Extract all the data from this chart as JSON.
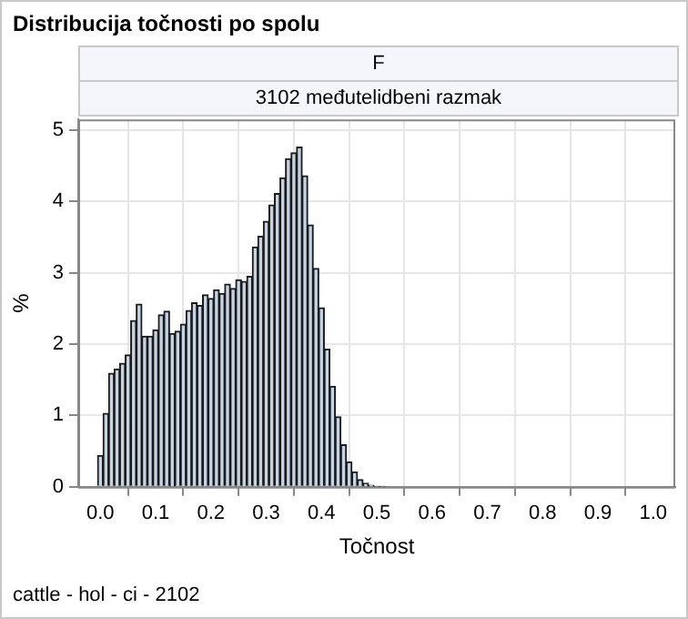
{
  "chart_data": {
    "type": "histogram",
    "title": "Distribucija točnosti po spolu",
    "subtitle": "F",
    "annotations": [
      "3102 međutelidbeni razmak",
      "cattle - hol - ci - 2102"
    ],
    "xlabel": "Točnost",
    "ylabel": "%",
    "color": "#c6d3e3",
    "grid": true,
    "xlim": [
      -0.04,
      1.04
    ],
    "xticks": [
      {
        "value": 0,
        "label": "0.0"
      },
      0.1,
      0.2,
      0.3,
      0.4,
      0.5,
      0.6,
      0.7,
      0.8,
      0.9,
      {
        "value": 1,
        "label": "1.0"
      }
    ],
    "ylim": [
      0,
      5.15
    ],
    "yticks": [
      0,
      1,
      2,
      3,
      4,
      5
    ],
    "bins": [
      -0.005,
      0.005,
      0.015,
      0.025,
      0.035,
      0.045,
      0.055,
      0.065,
      0.075,
      0.085,
      0.095,
      0.105,
      0.115,
      0.125,
      0.135,
      0.145,
      0.155,
      0.165,
      0.175,
      0.185,
      0.195,
      0.205,
      0.215,
      0.225,
      0.235,
      0.245,
      0.255,
      0.265,
      0.275,
      0.285,
      0.295,
      0.305,
      0.315,
      0.325,
      0.335,
      0.345,
      0.355,
      0.365,
      0.375,
      0.385,
      0.395,
      0.405,
      0.415,
      0.425,
      0.435,
      0.445,
      0.455,
      0.465,
      0.475,
      0.485,
      0.495,
      0.505,
      0.515,
      0.525,
      0.535,
      0.545,
      0.555,
      0.565,
      0.575,
      0.585,
      0.595,
      0.605,
      0.615,
      0.625,
      0.635,
      0.645,
      0.655,
      0.665,
      0.675,
      0.685,
      0.695,
      0.705,
      0.715,
      0.725,
      0.735,
      0.745,
      0.755,
      0.765,
      0.775,
      0.785,
      0.795,
      0.805,
      0.815,
      0.825,
      0.835,
      0.845,
      0.855,
      0.865,
      0.875,
      0.885,
      0.895,
      0.905,
      0.915,
      0.925,
      0.935,
      0.945,
      0.955,
      0.965,
      0.975,
      0.985,
      0.995,
      1.005
    ],
    "values": [
      0.44,
      1.03,
      1.59,
      1.65,
      1.73,
      1.85,
      2.33,
      2.56,
      2.11,
      2.11,
      2.2,
      2.41,
      2.46,
      2.15,
      2.18,
      2.28,
      2.47,
      2.58,
      2.54,
      2.69,
      2.64,
      2.76,
      2.71,
      2.84,
      2.78,
      2.9,
      2.88,
      2.95,
      3.36,
      3.51,
      3.72,
      3.95,
      4.11,
      4.33,
      4.6,
      4.68,
      4.76,
      4.36,
      3.67,
      3.06,
      2.51,
      1.93,
      1.41,
      0.98,
      0.59,
      0.35,
      0.21,
      0.1,
      0.05,
      0.02,
      0.01,
      0.01,
      0,
      0,
      0,
      0,
      0,
      0,
      0,
      0,
      0,
      0,
      0,
      0,
      0,
      0,
      0,
      0,
      0,
      0,
      0,
      0,
      0,
      0,
      0,
      0,
      0,
      0,
      0,
      0,
      0,
      0,
      0,
      0,
      0,
      0,
      0,
      0,
      0,
      0,
      0,
      0,
      0,
      0,
      0,
      0,
      0,
      0,
      0,
      0,
      0
    ]
  }
}
